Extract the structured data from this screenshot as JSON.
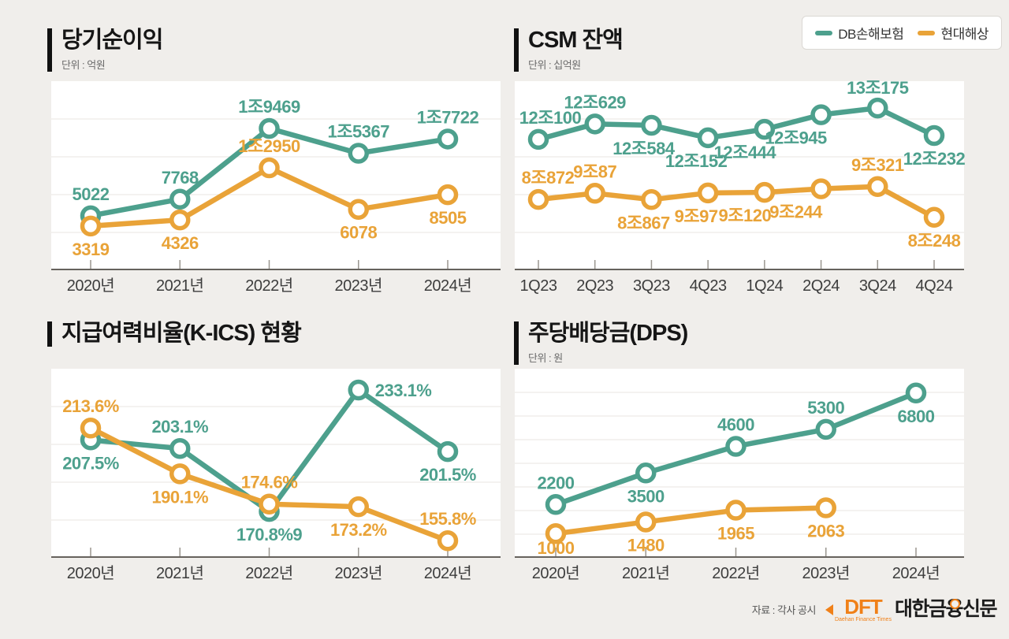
{
  "legend": {
    "items": [
      {
        "label": "DB손해보험",
        "color": "#4DA08D"
      },
      {
        "label": "현대해상",
        "color": "#E9A338"
      }
    ]
  },
  "footer": {
    "source": "자료 : 각사 공시",
    "logo": {
      "dft": "DFT",
      "sub": "Daehan Finance Times",
      "name_pre": "대한금",
      "name_mid": "융",
      "name_post": "신문"
    }
  },
  "charts": [
    {
      "title": "당기순이익",
      "subtitle": "단위 : 억원",
      "chart_data": {
        "type": "line",
        "categories": [
          "2020년",
          "2021년",
          "2022년",
          "2023년",
          "2024년"
        ],
        "ylim": [
          -4000,
          27300
        ],
        "grid": "on",
        "series": [
          {
            "name": "DB손해보험",
            "color": "#4DA08D",
            "points": [
              {
                "v": 5022,
                "label": "5022",
                "pos": "above"
              },
              {
                "v": 7768,
                "label": "7768",
                "pos": "above"
              },
              {
                "v": 19469,
                "label": "1조9469",
                "pos": "above"
              },
              {
                "v": 15367,
                "label": "1조5367",
                "pos": "above"
              },
              {
                "v": 17722,
                "label": "1조7722",
                "pos": "above"
              }
            ]
          },
          {
            "name": "현대해상",
            "color": "#E9A338",
            "points": [
              {
                "v": 3319,
                "label": "3319",
                "pos": "below"
              },
              {
                "v": 4326,
                "label": "4326",
                "pos": "below"
              },
              {
                "v": 12950,
                "label": "1조2950",
                "pos": "above"
              },
              {
                "v": 6078,
                "label": "6078",
                "pos": "below"
              },
              {
                "v": 8505,
                "label": "8505",
                "pos": "below"
              }
            ]
          }
        ]
      }
    },
    {
      "title": "CSM 잔액",
      "subtitle": "단위 : 십억원",
      "chart_data": {
        "type": "line",
        "categories": [
          "1Q23",
          "2Q23",
          "3Q23",
          "4Q23",
          "1Q24",
          "2Q24",
          "3Q24",
          "4Q24"
        ],
        "grid": "on",
        "series": [
          {
            "name": "DB손해보험",
            "color": "#4DA08D",
            "ylim": [
              7600,
              14100
            ],
            "points": [
              {
                "v": 12100,
                "label": "12조100",
                "pos": "above",
                "dx": 15
              },
              {
                "v": 12629,
                "label": "12조629",
                "pos": "above"
              },
              {
                "v": 12584,
                "label": "12조584",
                "pos": "below",
                "dx": -10
              },
              {
                "v": 12152,
                "label": "12조152",
                "pos": "below",
                "dx": -15
              },
              {
                "v": 12444,
                "label": "12조444",
                "pos": "below",
                "dx": -25
              },
              {
                "v": 12945,
                "label": "12조945",
                "pos": "below",
                "dx": -32
              },
              {
                "v": 13175,
                "label": "13조175",
                "pos": "above"
              },
              {
                "v": 12232,
                "label": "12조232",
                "pos": "below"
              }
            ]
          },
          {
            "name": "현대해상",
            "color": "#E9A338",
            "ylim": [
              6400,
              13000
            ],
            "points": [
              {
                "v": 8872,
                "label": "8조872",
                "pos": "above",
                "dx": 12
              },
              {
                "v": 9087,
                "label": "9조87",
                "pos": "above"
              },
              {
                "v": 8867,
                "label": "8조867",
                "pos": "below",
                "dx": -10
              },
              {
                "v": 9097,
                "label": "9조97",
                "pos": "below",
                "dx": -15
              },
              {
                "v": 9120,
                "label": "9조120",
                "pos": "below",
                "dx": -25
              },
              {
                "v": 9244,
                "label": "9조244",
                "pos": "below",
                "dx": -32
              },
              {
                "v": 9321,
                "label": "9조321",
                "pos": "above"
              },
              {
                "v": 8248,
                "label": "8조248",
                "pos": "below"
              }
            ]
          }
        ]
      }
    },
    {
      "title": "지급여력비율(K-ICS) 현황",
      "subtitle": "",
      "chart_data": {
        "type": "line",
        "categories": [
          "2020년",
          "2021년",
          "2022년",
          "2023년",
          "2024년"
        ],
        "ylim": [
          147,
          244
        ],
        "grid": "on",
        "series": [
          {
            "name": "DB손해보험",
            "color": "#4DA08D",
            "points": [
              {
                "v": 207.5,
                "label": "207.5%",
                "pos": "below"
              },
              {
                "v": 203.1,
                "label": "203.1%",
                "pos": "above"
              },
              {
                "v": 170.8,
                "label": "170.8%9",
                "pos": "below"
              },
              {
                "v": 233.1,
                "label": "233.1%",
                "pos": "right"
              },
              {
                "v": 201.5,
                "label": "201.5%",
                "pos": "below"
              }
            ]
          },
          {
            "name": "현대해상",
            "color": "#E9A338",
            "points": [
              {
                "v": 213.6,
                "label": "213.6%",
                "pos": "above"
              },
              {
                "v": 190.1,
                "label": "190.1%",
                "pos": "below"
              },
              {
                "v": 174.6,
                "label": "174.6%",
                "pos": "above"
              },
              {
                "v": 173.2,
                "label": "173.2%",
                "pos": "below"
              },
              {
                "v": 155.8,
                "label": "155.8%",
                "pos": "above"
              }
            ]
          }
        ]
      }
    },
    {
      "title": "주당배당금(DPS)",
      "subtitle": "단위 : 원",
      "chart_data": {
        "type": "line",
        "categories": [
          "2020년",
          "2021년",
          "2022년",
          "2023년",
          "2024년"
        ],
        "ylim": [
          0,
          7800
        ],
        "grid": "on",
        "series": [
          {
            "name": "DB손해보험",
            "color": "#4DA08D",
            "points": [
              {
                "v": 2200,
                "label": "2200",
                "pos": "above"
              },
              {
                "v": 3500,
                "label": "3500",
                "pos": "below"
              },
              {
                "v": 4600,
                "label": "4600",
                "pos": "above"
              },
              {
                "v": 5300,
                "label": "5300",
                "pos": "above"
              },
              {
                "v": 6800,
                "label": "6800",
                "pos": "below"
              }
            ]
          },
          {
            "name": "현대해상",
            "color": "#E9A338",
            "points": [
              {
                "v": 1000,
                "label": "1000",
                "pos": "below"
              },
              {
                "v": 1480,
                "label": "1480",
                "pos": "below"
              },
              {
                "v": 1965,
                "label": "1965",
                "pos": "below"
              },
              {
                "v": 2063,
                "label": "2063",
                "pos": "below"
              }
            ]
          }
        ]
      }
    }
  ]
}
